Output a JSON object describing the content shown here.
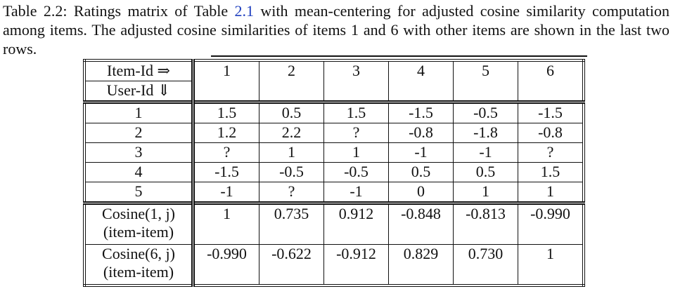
{
  "caption": {
    "before": "Table 2.2: Ratings matrix of Table ",
    "link": "2.1",
    "after": " with mean-centering for adjusted cosine similarity computation among items. The adjusted cosine similarities of items 1 and 6 with other items are shown in the last two rows."
  },
  "table": {
    "header": {
      "item_label": "Item-Id ⇒",
      "user_label": "User-Id ⇓",
      "items": [
        "1",
        "2",
        "3",
        "4",
        "5",
        "6"
      ]
    },
    "rows": [
      [
        "1",
        "1.5",
        "0.5",
        "1.5",
        "-1.5",
        "-0.5",
        "-1.5"
      ],
      [
        "2",
        "1.2",
        "2.2",
        "?",
        "-0.8",
        "-1.8",
        "-0.8"
      ],
      [
        "3",
        "?",
        "1",
        "1",
        "-1",
        "-1",
        "?"
      ],
      [
        "4",
        "-1.5",
        "-0.5",
        "-0.5",
        "0.5",
        "0.5",
        "1.5"
      ],
      [
        "5",
        "-1",
        "?",
        "-1",
        "0",
        "1",
        "1"
      ]
    ],
    "cosine_rows": [
      {
        "label": [
          "Cosine(1, j)",
          "(item-item)"
        ],
        "values": [
          "1",
          "0.735",
          "0.912",
          "-0.848",
          "-0.813",
          "-0.990"
        ]
      },
      {
        "label": [
          "Cosine(6, j)",
          "(item-item)"
        ],
        "values": [
          "-0.990",
          "-0.622",
          "-0.912",
          "0.829",
          "0.730",
          "1"
        ]
      }
    ]
  }
}
